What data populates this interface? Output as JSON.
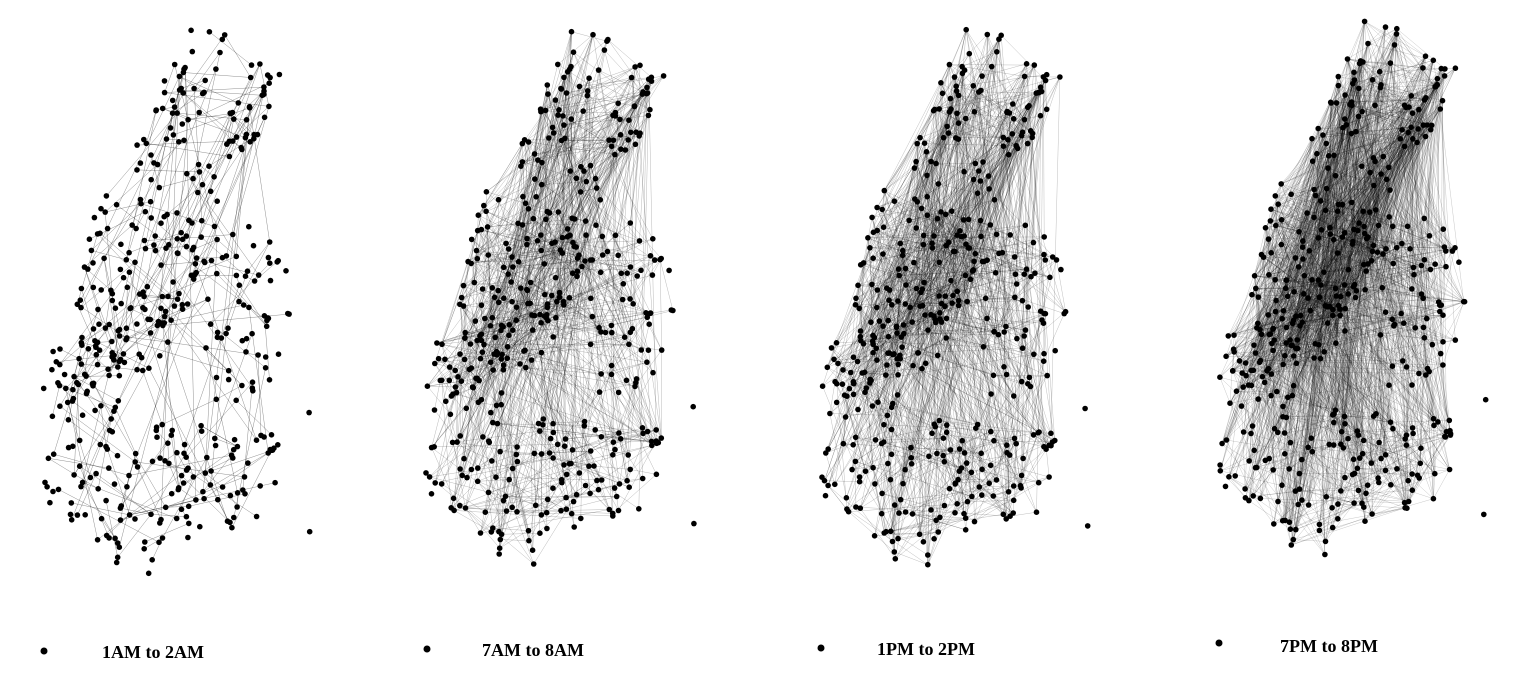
{
  "figure": {
    "panels": [
      {
        "id": "p1",
        "label": "1AM to 2AM",
        "density": "low"
      },
      {
        "id": "p2",
        "label": "7AM to 8AM",
        "density": "medium"
      },
      {
        "id": "p3",
        "label": "1PM to 2PM",
        "density": "medium-high"
      },
      {
        "id": "p4",
        "label": "7PM to 8PM",
        "density": "high"
      }
    ],
    "colors": {
      "node": "#000000",
      "edge": "#000000",
      "background": "#ffffff"
    }
  }
}
